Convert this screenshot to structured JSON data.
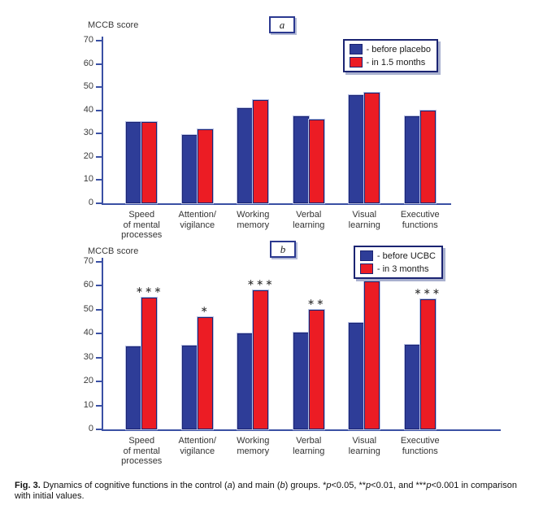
{
  "chart_data": [
    {
      "id": "a",
      "type": "bar",
      "panel_label": "a",
      "axis_title": "MCCB score",
      "ylim": [
        0,
        70
      ],
      "yticks": [
        0,
        10,
        20,
        30,
        40,
        50,
        60,
        70
      ],
      "grid": false,
      "legend_position": "top-right",
      "categories": [
        [
          "Speed",
          "of mental",
          "processes"
        ],
        [
          "Attention/",
          "vigilance"
        ],
        [
          "Working",
          "memory"
        ],
        [
          "Verbal",
          "learning"
        ],
        [
          "Visual",
          "learning"
        ],
        [
          "Executive",
          "functions"
        ]
      ],
      "series": [
        {
          "name": "- before placebo",
          "color": "#2E3D98",
          "values": [
            35,
            29.5,
            41,
            37.5,
            46.5,
            37.5
          ]
        },
        {
          "name": "- in 1.5 months",
          "color": "#EC1C24",
          "values": [
            35,
            32,
            44.5,
            36,
            47.5,
            40
          ]
        }
      ],
      "annotations": [
        "",
        "",
        "",
        "",
        "",
        ""
      ]
    },
    {
      "id": "b",
      "type": "bar",
      "panel_label": "b",
      "axis_title": "MCCB score",
      "ylim": [
        0,
        70
      ],
      "yticks": [
        0,
        10,
        20,
        30,
        40,
        50,
        60,
        70
      ],
      "grid": false,
      "legend_position": "top-right",
      "categories": [
        [
          "Speed",
          "of mental",
          "processes"
        ],
        [
          "Attention/",
          "vigilance"
        ],
        [
          "Working",
          "memory"
        ],
        [
          "Verbal",
          "learning"
        ],
        [
          "Visual",
          "learning"
        ],
        [
          "Executive",
          "functions"
        ]
      ],
      "series": [
        {
          "name": "- before UCBC",
          "color": "#2E3D98",
          "values": [
            34.5,
            35,
            40,
            40.5,
            44.5,
            35.5
          ]
        },
        {
          "name": "- in 3 months",
          "color": "#EC1C24",
          "values": [
            55,
            47,
            58,
            50,
            62,
            54.5
          ]
        }
      ],
      "annotations": [
        "***",
        "*",
        "***",
        "**",
        "***",
        "***"
      ]
    }
  ],
  "caption": {
    "segments": [
      {
        "text": "Fig. 3.",
        "bold": true
      },
      {
        "text": " Dynamics of cognitive functions in the control ("
      },
      {
        "text": "a",
        "italic": true
      },
      {
        "text": ") and main ("
      },
      {
        "text": "b",
        "italic": true
      },
      {
        "text": ") groups. *"
      },
      {
        "text": "p",
        "italic": true
      },
      {
        "text": "<0.05, **"
      },
      {
        "text": "p",
        "italic": true
      },
      {
        "text": "<0.01, and ***"
      },
      {
        "text": "p",
        "italic": true
      },
      {
        "text": "<0.001 in comparison with initial values."
      }
    ]
  }
}
